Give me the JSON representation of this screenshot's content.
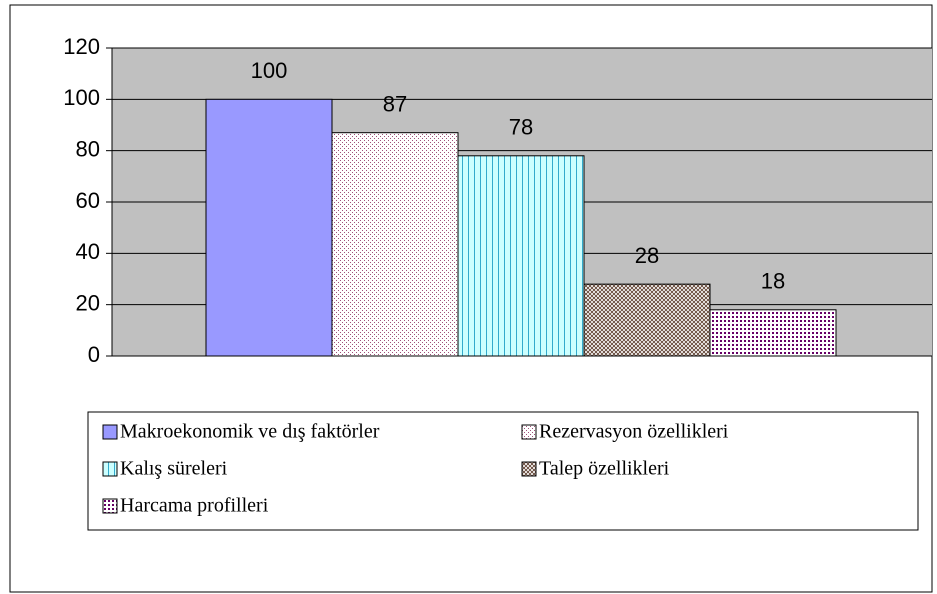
{
  "chart_data": {
    "type": "bar",
    "series": [
      {
        "name": "Makroekonomik ve dış faktörler",
        "color": "#9999ff",
        "values": [
          100
        ]
      },
      {
        "name": "Rezervasyon özellikleri",
        "color": "#fff0f6",
        "values": [
          87
        ]
      },
      {
        "name": "Kalış süreleri",
        "color": "#ccffff",
        "values": [
          78
        ]
      },
      {
        "name": "Talep özellikleri",
        "color": "#ffffff",
        "values": [
          28
        ]
      },
      {
        "name": "Harcama profilleri",
        "color": "#ffffff",
        "values": [
          18
        ]
      }
    ],
    "ylim": [
      0,
      120
    ],
    "yticks": [
      0,
      20,
      40,
      60,
      80,
      100,
      120
    ],
    "grid": true,
    "legend": "bottom"
  }
}
